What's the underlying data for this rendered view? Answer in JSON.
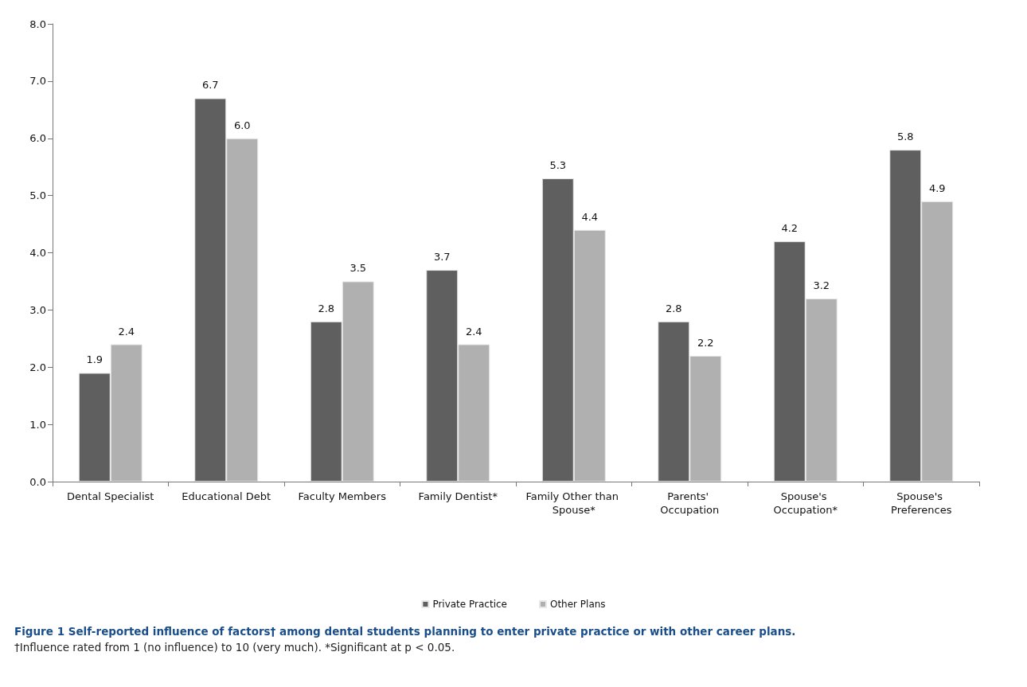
{
  "chart_data": {
    "type": "bar",
    "title": "Figure 1 Self-reported influence of factors† among dental students planning to enter private practice or with other career plans.",
    "annotations": [
      "†Influence rated from 1 (no influence) to 10 (very much). *Significant at p < 0.05."
    ],
    "categories": [
      "Dental Specialist",
      "Educational Debt",
      "Faculty Members",
      "Family Dentist*",
      "Family Other than Spouse*",
      "Parents' Occupation",
      "Spouse's Occupation*",
      "Spouse's Preferences"
    ],
    "series": [
      {
        "name": "Private Practice",
        "color": "#5f5f5f",
        "values": [
          1.9,
          6.7,
          2.8,
          3.7,
          5.3,
          2.8,
          4.2,
          5.8
        ],
        "value_labels": [
          "1.9",
          "6.7",
          "2.8",
          "3.7",
          "5.3",
          "2.8",
          "4.2",
          "5.8"
        ]
      },
      {
        "name": "Other Plans",
        "color": "#b0b0b0",
        "values": [
          2.4,
          6.0,
          3.5,
          2.4,
          4.4,
          2.2,
          3.2,
          4.9
        ],
        "value_labels": [
          "2.4",
          "6.0",
          "3.5",
          "2.4",
          "4.4",
          "2.2",
          "3.2",
          "4.9"
        ]
      }
    ],
    "ylim": [
      0,
      8
    ],
    "yticks": [
      {
        "value": 0,
        "label": "0.0"
      },
      {
        "value": 1,
        "label": "1.0"
      },
      {
        "value": 2,
        "label": "2.0"
      },
      {
        "value": 3,
        "label": "3.0"
      },
      {
        "value": 4,
        "label": "4.0"
      },
      {
        "value": 5,
        "label": "5.0"
      },
      {
        "value": 6,
        "label": "6.0"
      },
      {
        "value": 7,
        "label": "7.0"
      },
      {
        "value": 8,
        "label": "8.0"
      }
    ],
    "grid": false,
    "legend": "bottom"
  }
}
